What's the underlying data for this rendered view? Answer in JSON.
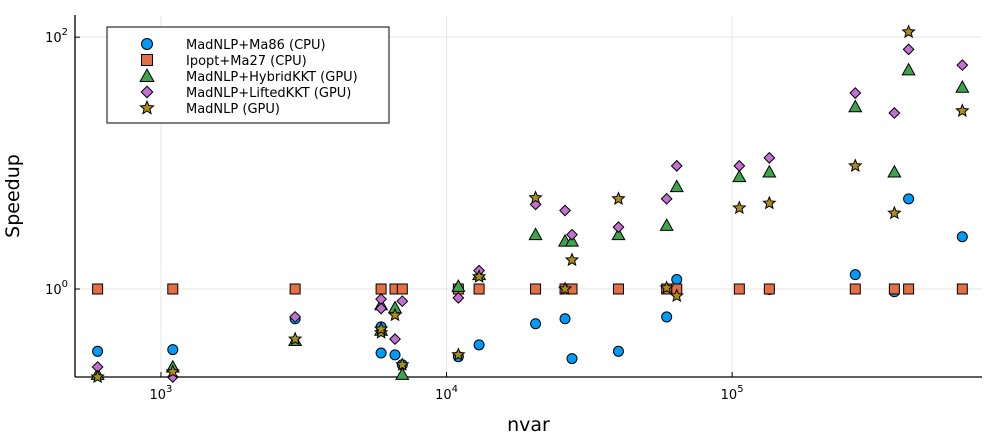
{
  "chart_data": {
    "type": "scatter",
    "title": "",
    "xlabel": "nvar",
    "ylabel": "Speedup",
    "xscale": "log",
    "yscale": "log",
    "xlim": [
      500,
      750000
    ],
    "ylim": [
      0.2,
      150
    ],
    "grid": true,
    "legend_position": "top-left",
    "x_ticks": [
      {
        "value": 1000,
        "base": "10",
        "exp": "3"
      },
      {
        "value": 10000,
        "base": "10",
        "exp": "4"
      },
      {
        "value": 100000,
        "base": "10",
        "exp": "5"
      }
    ],
    "y_ticks": [
      {
        "value": 1,
        "base": "10",
        "exp": "0"
      },
      {
        "value": 100,
        "base": "10",
        "exp": "2"
      }
    ],
    "series": [
      {
        "name": "MadNLP+Ma86 (CPU)",
        "marker": "circle",
        "color": "#009af9",
        "points": [
          [
            600,
            0.32
          ],
          [
            1100,
            0.33
          ],
          [
            2950,
            0.58
          ],
          [
            5900,
            0.31
          ],
          [
            5900,
            0.5
          ],
          [
            6600,
            0.3
          ],
          [
            7000,
            0.25
          ],
          [
            11000,
            0.29
          ],
          [
            13000,
            0.36
          ],
          [
            20500,
            0.53
          ],
          [
            26000,
            0.58
          ],
          [
            27500,
            0.28
          ],
          [
            40000,
            0.32
          ],
          [
            59000,
            0.6
          ],
          [
            64000,
            1.19
          ],
          [
            135000,
            0.99
          ],
          [
            270000,
            1.3
          ],
          [
            370000,
            0.95
          ],
          [
            415000,
            5.2
          ],
          [
            640000,
            2.6
          ]
        ]
      },
      {
        "name": "Ipopt+Ma27 (CPU)",
        "marker": "square",
        "color": "#e26f46",
        "points": [
          [
            600,
            1
          ],
          [
            1100,
            1
          ],
          [
            2950,
            1
          ],
          [
            5900,
            1
          ],
          [
            6600,
            1
          ],
          [
            7000,
            1
          ],
          [
            11000,
            1
          ],
          [
            13000,
            1
          ],
          [
            20500,
            1
          ],
          [
            26000,
            1
          ],
          [
            27500,
            1
          ],
          [
            40000,
            1
          ],
          [
            59000,
            1
          ],
          [
            64000,
            1
          ],
          [
            106000,
            1
          ],
          [
            135000,
            1
          ],
          [
            270000,
            1
          ],
          [
            370000,
            1
          ],
          [
            415000,
            1
          ],
          [
            640000,
            1
          ]
        ]
      },
      {
        "name": "MadNLP+HybridKKT (GPU)",
        "marker": "triangle",
        "color": "#3da44d",
        "points": [
          [
            600,
            0.21
          ],
          [
            1100,
            0.24
          ],
          [
            2950,
            0.39
          ],
          [
            5900,
            0.47
          ],
          [
            5900,
            0.75
          ],
          [
            6600,
            0.71
          ],
          [
            7000,
            0.21
          ],
          [
            11000,
            1.05
          ],
          [
            13000,
            1.3
          ],
          [
            20500,
            2.7
          ],
          [
            26000,
            2.4
          ],
          [
            27500,
            2.4
          ],
          [
            40000,
            2.7
          ],
          [
            59000,
            3.2
          ],
          [
            64000,
            6.5
          ],
          [
            106000,
            7.8
          ],
          [
            135000,
            8.5
          ],
          [
            270000,
            28
          ],
          [
            370000,
            8.5
          ],
          [
            415000,
            55
          ],
          [
            640000,
            40
          ]
        ]
      },
      {
        "name": "MadNLP+LiftedKKT (GPU)",
        "marker": "diamond",
        "color": "#c271d2",
        "points": [
          [
            600,
            0.24
          ],
          [
            1100,
            0.2
          ],
          [
            2950,
            0.6
          ],
          [
            5900,
            0.83
          ],
          [
            5900,
            0.7
          ],
          [
            6600,
            0.4
          ],
          [
            7000,
            0.8
          ],
          [
            11000,
            0.85
          ],
          [
            13000,
            1.4
          ],
          [
            20500,
            4.7
          ],
          [
            26000,
            4.2
          ],
          [
            27500,
            2.7
          ],
          [
            40000,
            3.1
          ],
          [
            59000,
            5.2
          ],
          [
            64000,
            9.5
          ],
          [
            106000,
            9.5
          ],
          [
            135000,
            11
          ],
          [
            270000,
            36
          ],
          [
            370000,
            25
          ],
          [
            415000,
            80
          ],
          [
            640000,
            60
          ]
        ]
      },
      {
        "name": "MadNLP (GPU)",
        "marker": "star",
        "color": "#ac8d18",
        "points": [
          [
            600,
            0.2
          ],
          [
            1100,
            0.22
          ],
          [
            2950,
            0.4
          ],
          [
            5900,
            0.45
          ],
          [
            5900,
            0.48
          ],
          [
            6600,
            0.62
          ],
          [
            7000,
            0.25
          ],
          [
            11000,
            0.3
          ],
          [
            13000,
            1.25
          ],
          [
            20500,
            5.3
          ],
          [
            26000,
            1.0
          ],
          [
            27500,
            1.7
          ],
          [
            40000,
            5.2
          ],
          [
            59000,
            1.02
          ],
          [
            64000,
            0.88
          ],
          [
            106000,
            4.4
          ],
          [
            135000,
            4.8
          ],
          [
            270000,
            9.5
          ],
          [
            370000,
            4.0
          ],
          [
            415000,
            110
          ],
          [
            640000,
            26
          ]
        ]
      }
    ]
  }
}
